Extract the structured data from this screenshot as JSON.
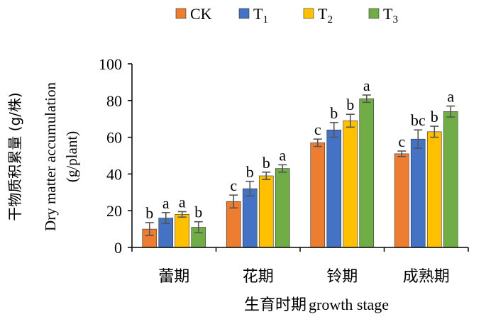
{
  "chart_data": {
    "type": "bar",
    "title": "",
    "categories": [
      "蕾期",
      "花期",
      "铃期",
      "成熟期"
    ],
    "series": [
      {
        "name": "CK",
        "subscript": "",
        "color": "#ED7D31",
        "values": [
          10,
          25,
          57,
          51
        ],
        "errors": [
          3.5,
          3.5,
          2,
          1.5
        ],
        "letters": [
          "b",
          "c",
          "c",
          "c"
        ]
      },
      {
        "name": "T",
        "subscript": "1",
        "color": "#4472C4",
        "values": [
          16,
          32,
          64,
          59
        ],
        "errors": [
          3,
          4,
          4,
          5
        ],
        "letters": [
          "a",
          "b",
          "b",
          "bc"
        ]
      },
      {
        "name": "T",
        "subscript": "2",
        "color": "#FFC000",
        "values": [
          18,
          39,
          69,
          63
        ],
        "errors": [
          1.5,
          2,
          3.5,
          3
        ],
        "letters": [
          "a",
          "b",
          "b",
          "b"
        ]
      },
      {
        "name": "T",
        "subscript": "3",
        "color": "#70AD47",
        "values": [
          11,
          43,
          81,
          74
        ],
        "errors": [
          3,
          2,
          2,
          3
        ],
        "letters": [
          "b",
          "a",
          "a",
          "a"
        ]
      }
    ],
    "ylim": [
      0,
      100
    ],
    "yticks": [
      0,
      20,
      40,
      60,
      80,
      100
    ],
    "ylabel_cn": "干物质积累量 (g/株)",
    "ylabel_en_line1": "Dry matter accumulation",
    "ylabel_en_line2": "(g/plant)",
    "xlabel_cn": "生育时期",
    "xlabel_en": "growth stage",
    "legend_position": "top",
    "grid": false,
    "error_bars": true
  }
}
